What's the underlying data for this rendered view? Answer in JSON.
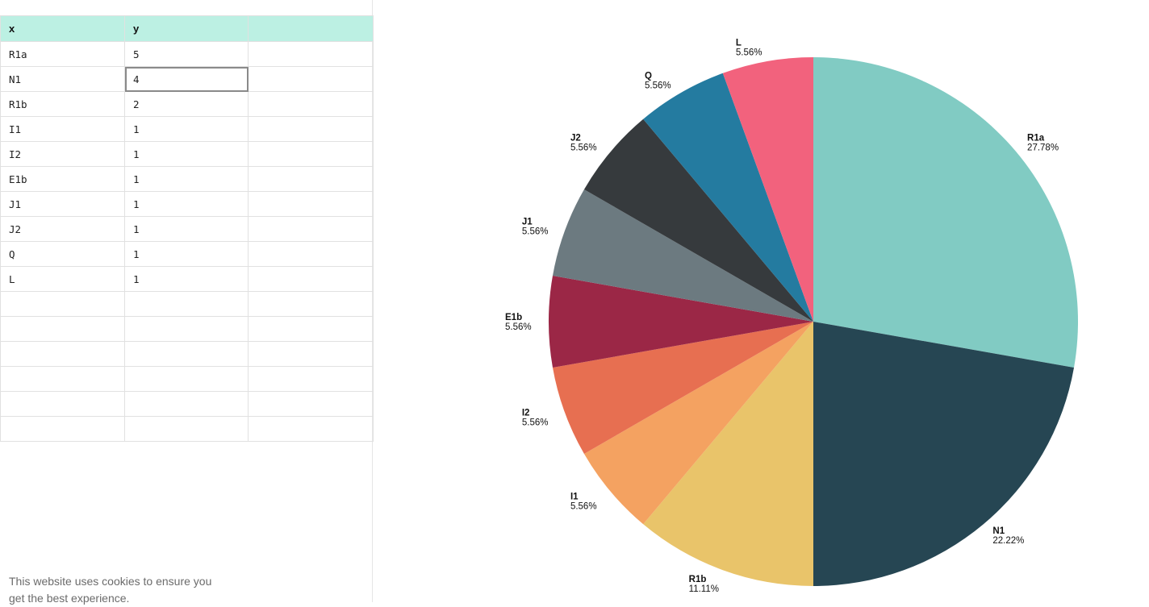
{
  "table": {
    "columns": [
      "x",
      "y",
      ""
    ],
    "rows": [
      [
        "R1a",
        "5",
        ""
      ],
      [
        "N1",
        "4",
        ""
      ],
      [
        "R1b",
        "2",
        ""
      ],
      [
        "I1",
        "1",
        ""
      ],
      [
        "I2",
        "1",
        ""
      ],
      [
        "E1b",
        "1",
        ""
      ],
      [
        "J1",
        "1",
        ""
      ],
      [
        "J2",
        "1",
        ""
      ],
      [
        "Q",
        "1",
        ""
      ],
      [
        "L",
        "1",
        ""
      ]
    ],
    "empty_row_count": 6,
    "selected_cell": {
      "row": 1,
      "col": 1
    }
  },
  "cookie_notice": {
    "text": "This website uses cookies to ensure you get the best experience."
  },
  "chart_data": {
    "type": "pie",
    "title": "",
    "start_angle_deg": 0,
    "direction": "clockwise",
    "slices": [
      {
        "label": "R1a",
        "value": 5,
        "percent": "27.78%",
        "color": "#81cbc3"
      },
      {
        "label": "N1",
        "value": 4,
        "percent": "22.22%",
        "color": "#264653"
      },
      {
        "label": "R1b",
        "value": 2,
        "percent": "11.11%",
        "color": "#e9c46a"
      },
      {
        "label": "I1",
        "value": 1,
        "percent": "5.56%",
        "color": "#f4a261"
      },
      {
        "label": "I2",
        "value": 1,
        "percent": "5.56%",
        "color": "#e76f51"
      },
      {
        "label": "E1b",
        "value": 1,
        "percent": "5.56%",
        "color": "#9b2746"
      },
      {
        "label": "J1",
        "value": 1,
        "percent": "5.56%",
        "color": "#6c7a80"
      },
      {
        "label": "J2",
        "value": 1,
        "percent": "5.56%",
        "color": "#363a3d"
      },
      {
        "label": "Q",
        "value": 1,
        "percent": "5.56%",
        "color": "#247ba0"
      },
      {
        "label": "L",
        "value": 1,
        "percent": "5.56%",
        "color": "#f2627d"
      }
    ]
  }
}
